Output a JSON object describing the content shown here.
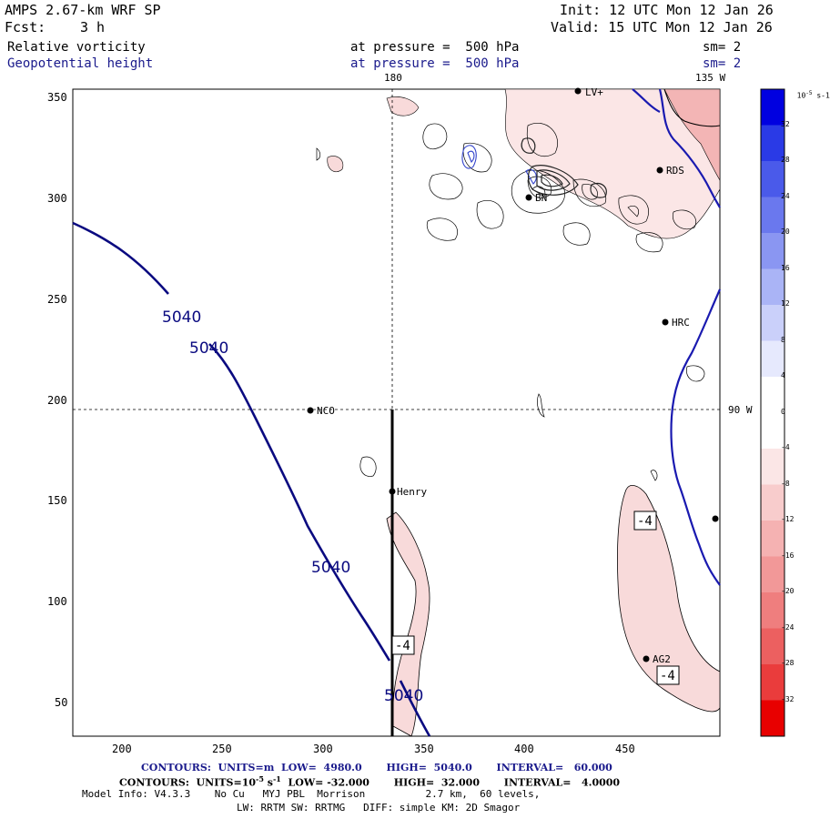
{
  "header": {
    "model": "AMPS 2.67-km WRF SP",
    "init": "Init: 12 UTC Mon 12 Jan 26",
    "fcst_label": "Fcst:",
    "fcst_value": "3 h",
    "valid": "Valid: 15 UTC Mon 12 Jan 26",
    "field1": "Relative vorticity",
    "field1_level": "at pressure =  500 hPa",
    "field1_sm": "sm= 2",
    "field2": "Geopotential height",
    "field2_level": "at pressure =  500 hPa",
    "field2_sm": "sm= 2"
  },
  "map": {
    "lon_top_180": "180",
    "lon_top_135w": "135 W",
    "lon_right_90w": "90 W",
    "x_ticks": [
      "200",
      "250",
      "300",
      "350",
      "400",
      "450"
    ],
    "y_ticks": [
      "350",
      "300",
      "250",
      "200",
      "150",
      "100",
      "50"
    ],
    "stations": [
      "LV+",
      "RDS",
      "BN",
      "HRC",
      "NCO",
      "Henry",
      "AG2"
    ],
    "height_labels": [
      "5040",
      "5040",
      "5040",
      "5040"
    ],
    "vort_labels": [
      "-4",
      "-4",
      "-4"
    ],
    "colors": {
      "height_contour": "#0a0a80",
      "vort_pos": "#3344cc",
      "vort_neg": "#e87878",
      "vort_neg_fill": "#f8dada",
      "coast": "#1a1ab0"
    }
  },
  "colorbar": {
    "units": "10",
    "units_exp": "-5",
    "units_tail": "s-1",
    "labels": [
      "32",
      "28",
      "24",
      "20",
      "16",
      "12",
      "8",
      "4",
      "0",
      "-4",
      "-8",
      "-12",
      "-16",
      "-20",
      "-24",
      "-28",
      "-32"
    ]
  },
  "footer": {
    "line1_prefix": "CONTOURS:  UNITS=m  LOW=  4980.0       HIGH=  5040.0       INTERVAL=   60.000",
    "line2_prefix": "CONTOURS:  UNITS=10",
    "line2_exp": "-5",
    "line2_rest": "s",
    "line2_exp2": "-1",
    "line2_tail": "  LOW= -32.000       HIGH=  32.000       INTERVAL=   4.0000",
    "model_info": "Model Info: V4.3.3    No Cu   MYJ PBL  Morrison          2.7 km,  60 levels,",
    "model_info2": "LW: RRTM SW: RRTMG   DIFF: simple KM: 2D Smagor"
  }
}
